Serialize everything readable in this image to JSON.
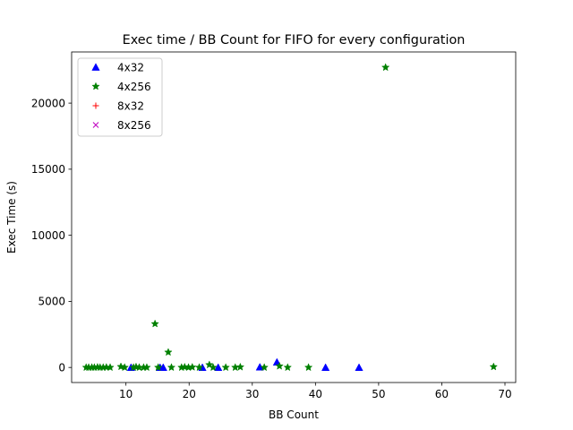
{
  "chart_data": {
    "type": "scatter",
    "title": "Exec time / BB Count for FIFO for every configuration",
    "xlabel": "BB Count",
    "ylabel": "Exec Time (s)",
    "xlim": [
      1.4,
      71.7
    ],
    "ylim": [
      -1140,
      23870
    ],
    "xticks": [
      10,
      20,
      30,
      40,
      50,
      60,
      70
    ],
    "yticks": [
      0,
      5000,
      10000,
      15000,
      20000
    ],
    "grid": false,
    "legend_position": "top-left",
    "series": [
      {
        "name": "4x32",
        "marker": "triangle",
        "color": "#0000ff",
        "points": [
          [
            10.8,
            0
          ],
          [
            15.4,
            0
          ],
          [
            15.9,
            0
          ],
          [
            22.1,
            0
          ],
          [
            24.6,
            0
          ],
          [
            31.2,
            30
          ],
          [
            33.9,
            400
          ],
          [
            41.6,
            0
          ],
          [
            46.9,
            0
          ]
        ]
      },
      {
        "name": "4x256",
        "marker": "star",
        "color": "#008000",
        "points": [
          [
            3.7,
            0
          ],
          [
            4.1,
            0
          ],
          [
            4.6,
            0
          ],
          [
            5.0,
            0
          ],
          [
            5.5,
            20
          ],
          [
            5.9,
            0
          ],
          [
            6.4,
            0
          ],
          [
            6.9,
            10
          ],
          [
            7.5,
            0
          ],
          [
            9.2,
            60
          ],
          [
            9.8,
            0
          ],
          [
            11.2,
            0
          ],
          [
            11.6,
            40
          ],
          [
            12.1,
            0
          ],
          [
            12.8,
            0
          ],
          [
            13.3,
            0
          ],
          [
            14.6,
            3300
          ],
          [
            15.1,
            0
          ],
          [
            16.7,
            1150
          ],
          [
            17.2,
            0
          ],
          [
            18.8,
            0
          ],
          [
            19.3,
            30
          ],
          [
            19.9,
            0
          ],
          [
            20.5,
            20
          ],
          [
            21.6,
            0
          ],
          [
            23.2,
            200
          ],
          [
            23.8,
            0
          ],
          [
            25.8,
            0
          ],
          [
            27.3,
            0
          ],
          [
            28.1,
            30
          ],
          [
            31.9,
            0
          ],
          [
            34.3,
            100
          ],
          [
            35.6,
            0
          ],
          [
            38.9,
            0
          ],
          [
            51.1,
            22700
          ],
          [
            68.2,
            50
          ]
        ]
      },
      {
        "name": "8x32",
        "marker": "plus",
        "color": "#ff0000",
        "points": []
      },
      {
        "name": "8x256",
        "marker": "x",
        "color": "#bf00bf",
        "points": []
      }
    ]
  }
}
